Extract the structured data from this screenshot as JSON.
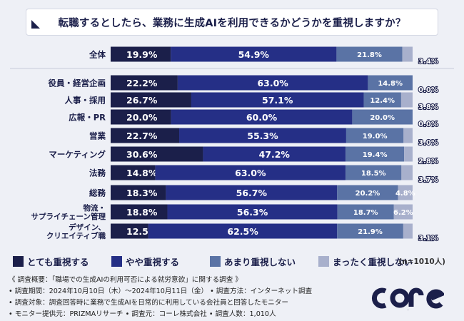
{
  "title": "転職するとしたら、業務に生成AIを利用できるかどうかを重視しますか？",
  "chart_data": {
    "type": "bar",
    "orientation": "horizontal",
    "stacked": true,
    "xlim": [
      0,
      100
    ],
    "categories": [
      "全体",
      "役員・経営企画",
      "人事・採用",
      "広報・PR",
      "営業",
      "マーケティング",
      "法務",
      "総務",
      "物流・サプライチェーン管理",
      "デザイン、クリエイティブ職"
    ],
    "category_lines": [
      [
        "全体"
      ],
      [
        "役員・経営企画"
      ],
      [
        "人事・採用"
      ],
      [
        "広報・PR"
      ],
      [
        "営業"
      ],
      [
        "マーケティング"
      ],
      [
        "法務"
      ],
      [
        "総務"
      ],
      [
        "物流・",
        "サプライチェーン管理"
      ],
      [
        "デザイン、",
        "クリエイティブ職"
      ]
    ],
    "series": [
      {
        "name": "とても重視する",
        "color": "#1b1f4a",
        "values": [
          19.9,
          22.2,
          26.7,
          20.0,
          22.7,
          30.6,
          14.8,
          18.3,
          18.8,
          12.5
        ],
        "labels": [
          "19.9%",
          "22.2%",
          "26.7%",
          "20.0%",
          "22.7%",
          "30.6%",
          "14.8%",
          "18.3%",
          "18.8%",
          "12.5%"
        ]
      },
      {
        "name": "やや重視する",
        "color": "#252f86",
        "values": [
          54.9,
          63.0,
          57.1,
          60.0,
          55.3,
          47.2,
          63.0,
          56.7,
          56.3,
          62.5
        ],
        "labels": [
          "54.9%",
          "63.0%",
          "57.1%",
          "60.0%",
          "55.3%",
          "47.2%",
          "63.0%",
          "56.7%",
          "56.3%",
          "62.5%"
        ]
      },
      {
        "name": "あまり重視しない",
        "color": "#5a73a5",
        "values": [
          21.8,
          14.8,
          12.4,
          20.0,
          19.0,
          19.4,
          18.5,
          20.2,
          18.7,
          21.9
        ],
        "labels": [
          "21.8%",
          "14.8%",
          "12.4%",
          "20.0%",
          "19.0%",
          "19.4%",
          "18.5%",
          "20.2%",
          "18.7%",
          "21.9%"
        ]
      },
      {
        "name": "まったく重視しない",
        "color": "#a8b0cc",
        "values": [
          3.4,
          0.0,
          3.8,
          0.0,
          3.0,
          2.8,
          3.7,
          4.8,
          6.2,
          3.1
        ],
        "labels": [
          "3.4%",
          "0.0%",
          "3.8%",
          "0.0%",
          "3.0%",
          "2.8%",
          "3.7%",
          "4.8%",
          "6.2%",
          "3.1%"
        ]
      }
    ],
    "n_note": "(n=1010人)"
  },
  "footnotes": [
    "《 調査概要：「職場での生成AIの利用可否による就労意欲」に関する調査 》",
    "• 調査期間：2024年10月10日（木）～2024年10月11日（金） • 調査方法：インターネット調査",
    "• 調査対象：調査回答時に業務で生成AIを日常的に利用している会社員と回答したモニター",
    "• モニター提供元：PRIZMAリサーチ • 調査元：コーレ株式会社 • 調査人数：1,010人"
  ],
  "logo_text": "CORE"
}
